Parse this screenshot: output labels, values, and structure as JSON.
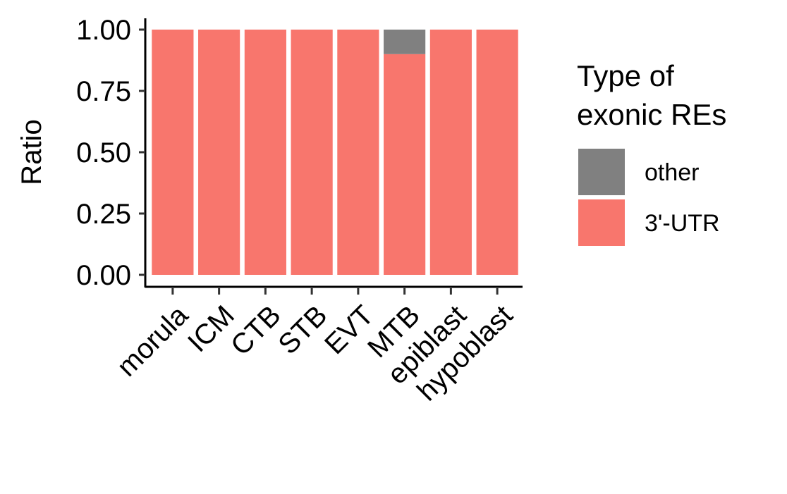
{
  "chart_data": {
    "type": "bar",
    "stacked": true,
    "categories": [
      "morula",
      "ICM",
      "CTB",
      "STB",
      "EVT",
      "MTB",
      "epiblast",
      "hypoblast"
    ],
    "series": [
      {
        "name": "3'-UTR",
        "color": "#F8766D",
        "values": [
          1.0,
          1.0,
          1.0,
          1.0,
          1.0,
          0.9,
          1.0,
          1.0
        ]
      },
      {
        "name": "other",
        "color": "#808080",
        "values": [
          0.0,
          0.0,
          0.0,
          0.0,
          0.0,
          0.1,
          0.0,
          0.0
        ]
      }
    ],
    "title": "",
    "xlabel": "",
    "ylabel": "Ratio",
    "ylim": [
      0,
      1
    ],
    "yticks": [
      "0.00",
      "0.25",
      "0.50",
      "0.75",
      "1.00"
    ],
    "grid": false,
    "legend": {
      "title_lines": [
        "Type of",
        "exonic REs"
      ],
      "placement": "right",
      "entries": [
        {
          "label": "other",
          "color": "#808080"
        },
        {
          "label": "3'-UTR",
          "color": "#F8766D"
        }
      ]
    }
  }
}
